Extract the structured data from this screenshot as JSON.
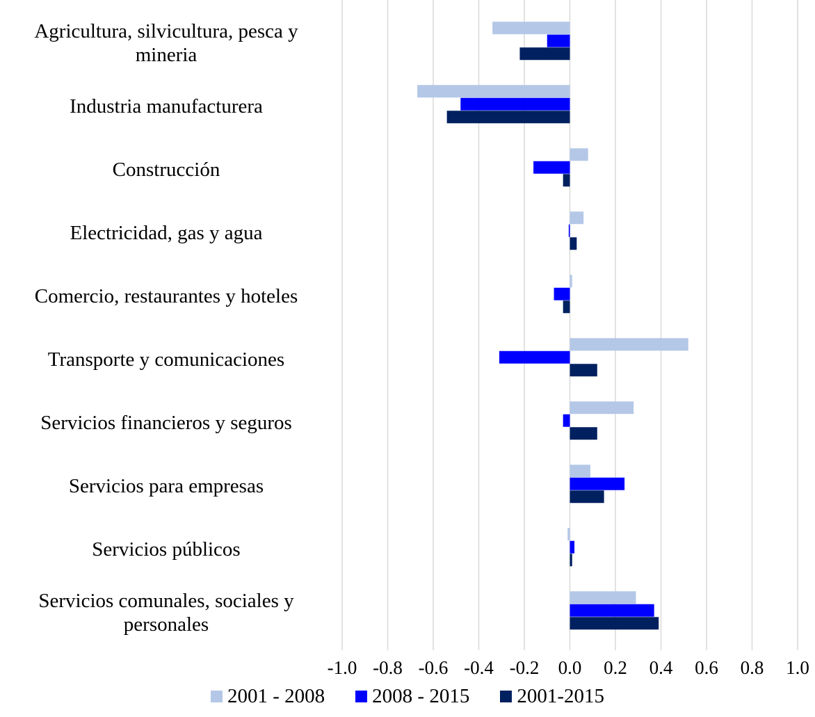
{
  "chart_data": {
    "type": "hbar",
    "categories": [
      "Agricultura, silvicultura, pesca y mineria",
      "Industria manufacturera",
      "Construcción",
      "Electricidad, gas y agua",
      "Comercio, restaurantes y hoteles",
      "Transporte y comunicaciones",
      "Servicios financieros y seguros",
      "Servicios para empresas",
      "Servicios públicos",
      "Servicios comunales, sociales y personales"
    ],
    "series": [
      {
        "name": "2001 - 2008",
        "color": "#b4c7e7",
        "values": [
          -0.34,
          -0.67,
          0.08,
          0.06,
          0.01,
          0.52,
          0.28,
          0.09,
          -0.01,
          0.29
        ]
      },
      {
        "name": "2008 - 2015",
        "color": "#0000ff",
        "values": [
          -0.1,
          -0.48,
          -0.16,
          -0.005,
          -0.07,
          -0.31,
          -0.03,
          0.24,
          0.02,
          0.37
        ]
      },
      {
        "name": "2001-2015",
        "color": "#002060",
        "values": [
          -0.22,
          -0.54,
          -0.03,
          0.03,
          -0.03,
          0.12,
          0.12,
          0.15,
          0.01,
          0.39
        ]
      }
    ],
    "xlim": [
      -1.0,
      1.0
    ],
    "xticks": [
      {
        "value": -1.0,
        "label": "-1.0"
      },
      -0.8,
      -0.6,
      -0.4,
      -0.2,
      {
        "value": 0.0,
        "label": "0.0"
      },
      0.2,
      0.4,
      0.6,
      0.8,
      {
        "value": 1.0,
        "label": "1.0"
      }
    ],
    "grid": true
  }
}
